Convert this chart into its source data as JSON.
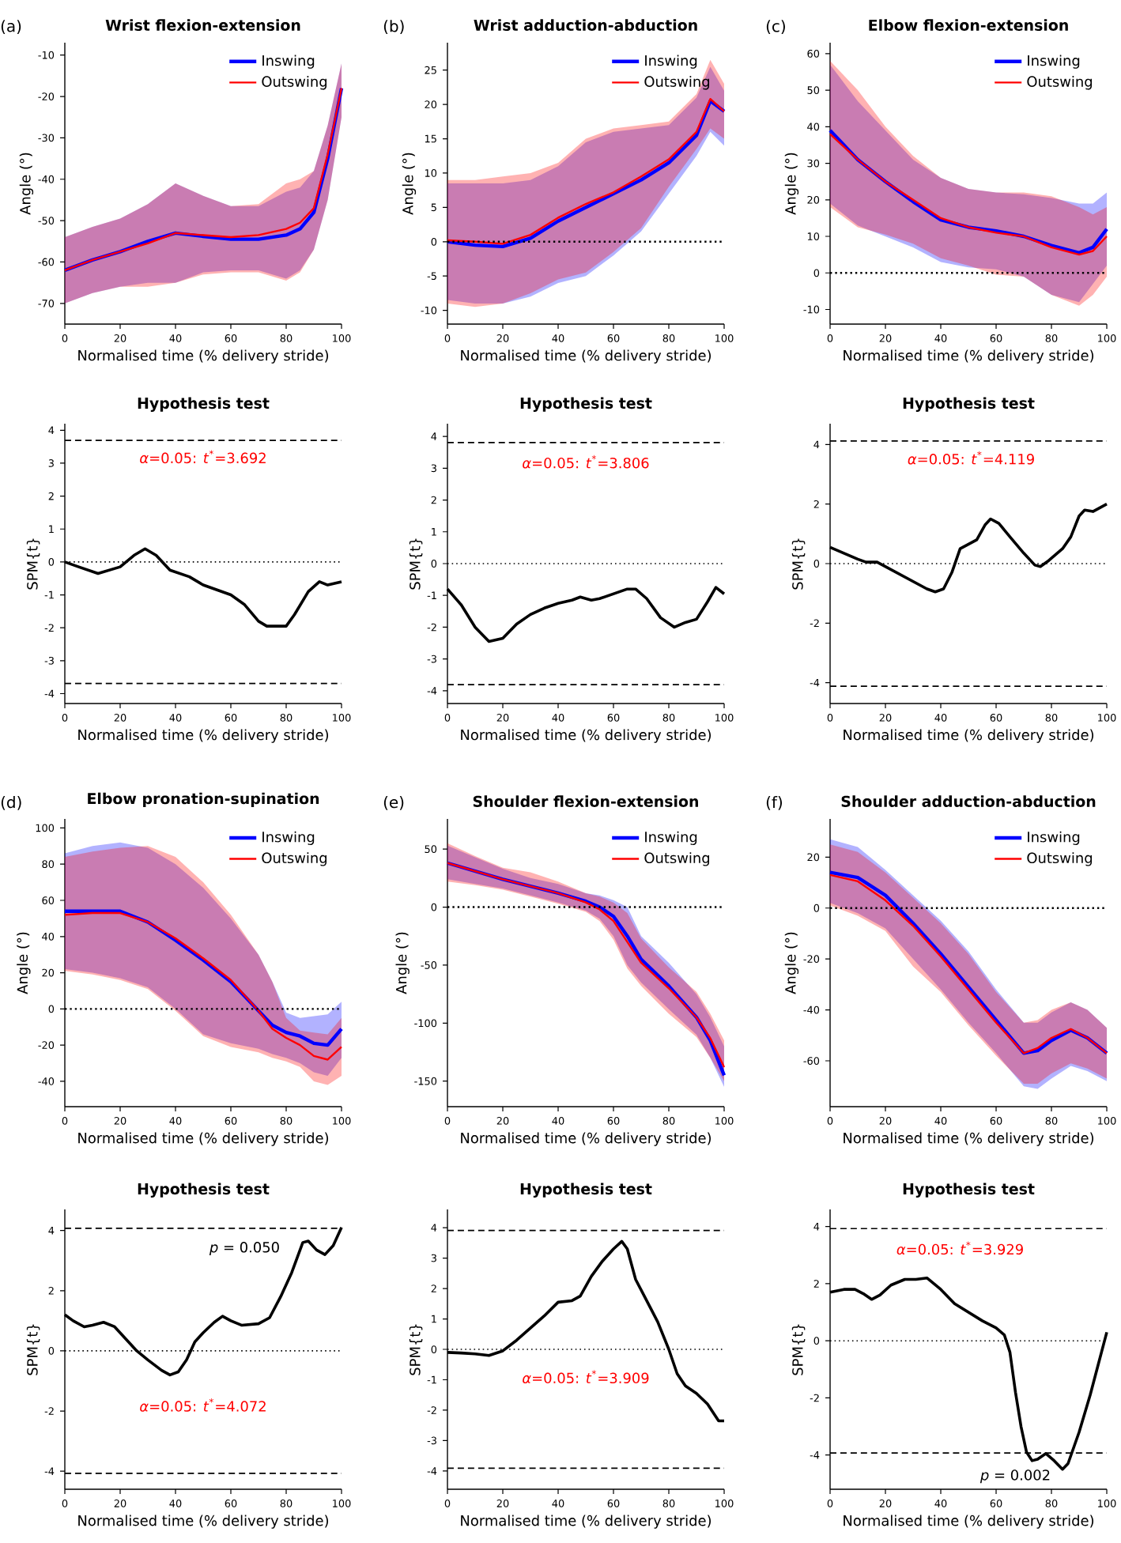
{
  "chart_data": [
    {
      "type": "line",
      "title": "Wrist flexion-extension",
      "xlabel": "Normalised time (% delivery stride)",
      "ylabel": "Angle (°)",
      "annotations": [
        "(a)"
      ],
      "legend": "top right",
      "xlim": [
        0,
        100
      ],
      "xticks": [
        0,
        20,
        40,
        60,
        80,
        100
      ],
      "ylim": [
        -75,
        -7
      ],
      "yticks": [
        -70,
        -60,
        -50,
        -40,
        -30,
        -20,
        -10
      ],
      "x": [
        0,
        10,
        20,
        30,
        40,
        50,
        60,
        70,
        80,
        85,
        90,
        95,
        100
      ],
      "series": [
        {
          "name": "Inswing",
          "color": "#0000ff",
          "values": [
            -62,
            -59.5,
            -57.5,
            -55,
            -53,
            -53.8,
            -54.5,
            -54.5,
            -53.5,
            -52,
            -48,
            -35,
            -18
          ],
          "upper": [
            -54,
            -51.5,
            -49.5,
            -46,
            -41,
            -44,
            -46.5,
            -46.5,
            -43,
            -42,
            -38,
            -27,
            -12
          ],
          "lower": [
            -70,
            -67.5,
            -66,
            -65,
            -65,
            -62.5,
            -62,
            -62,
            -64,
            -62,
            -57,
            -45,
            -25
          ]
        },
        {
          "name": "Outswing",
          "color": "#ff0000",
          "values": [
            -62,
            -59.5,
            -57.5,
            -55.5,
            -53,
            -53.5,
            -54,
            -53.5,
            -52,
            -50.5,
            -47,
            -34,
            -18
          ],
          "upper": [
            -54,
            -51.5,
            -49.5,
            -46,
            -41,
            -44,
            -46.5,
            -46,
            -41,
            -40,
            -38,
            -27,
            -12
          ],
          "lower": [
            -70,
            -67.5,
            -66,
            -66,
            -65,
            -63,
            -62.5,
            -62.5,
            -64.5,
            -62.5,
            -57,
            -45,
            -25
          ]
        }
      ]
    },
    {
      "type": "line",
      "title": "Wrist adduction-abduction",
      "xlabel": "Normalised time (% delivery stride)",
      "ylabel": "Angle (°)",
      "annotations": [
        "(b)"
      ],
      "legend": "top right",
      "xlim": [
        0,
        100
      ],
      "xticks": [
        0,
        20,
        40,
        60,
        80,
        100
      ],
      "ylim": [
        -12,
        29
      ],
      "yticks": [
        -10,
        -5,
        0,
        5,
        10,
        15,
        20,
        25
      ],
      "ref_lines": [
        {
          "axis": "y",
          "value": 0,
          "line_style": "dotted"
        }
      ],
      "x": [
        0,
        10,
        20,
        30,
        40,
        50,
        60,
        70,
        80,
        90,
        95,
        100
      ],
      "series": [
        {
          "name": "Inswing",
          "color": "#0000ff",
          "values": [
            0,
            -0.5,
            -0.7,
            0.5,
            3,
            5,
            7,
            9,
            11.5,
            15.5,
            20.5,
            19
          ],
          "upper": [
            8.5,
            8.5,
            8.5,
            9,
            11,
            14.5,
            16,
            16.5,
            17,
            21,
            25.5,
            22
          ],
          "lower": [
            -8.5,
            -9,
            -9,
            -8,
            -6,
            -5,
            -2,
            1.5,
            7,
            12.5,
            16,
            14
          ]
        },
        {
          "name": "Outswing",
          "color": "#ff0000",
          "values": [
            0.2,
            0,
            -0.3,
            1,
            3.5,
            5.5,
            7.2,
            9.5,
            12,
            16,
            20.8,
            19
          ],
          "upper": [
            9,
            9,
            9.5,
            10,
            11.5,
            15,
            16.5,
            17,
            17.5,
            21.5,
            26.5,
            23
          ],
          "lower": [
            -9,
            -9.5,
            -9,
            -7.5,
            -5.5,
            -4.5,
            -1.5,
            2,
            8,
            13.5,
            16.5,
            15
          ]
        }
      ]
    },
    {
      "type": "line",
      "title": "Elbow flexion-extension",
      "xlabel": "Normalised time (% delivery stride)",
      "ylabel": "Angle (°)",
      "annotations": [
        "(c)"
      ],
      "legend": "top right",
      "xlim": [
        0,
        100
      ],
      "xticks": [
        0,
        20,
        40,
        60,
        80,
        100
      ],
      "ylim": [
        -14,
        63
      ],
      "yticks": [
        -10,
        0,
        10,
        20,
        30,
        40,
        50,
        60
      ],
      "ref_lines": [
        {
          "axis": "y",
          "value": 0,
          "line_style": "dotted"
        }
      ],
      "x": [
        0,
        10,
        20,
        30,
        40,
        50,
        60,
        70,
        80,
        90,
        95,
        100
      ],
      "series": [
        {
          "name": "Inswing",
          "color": "#0000ff",
          "values": [
            39,
            31,
            25,
            19.5,
            14.5,
            12.5,
            11.5,
            10,
            7.5,
            5.5,
            7,
            12
          ],
          "upper": [
            57,
            47,
            39,
            31,
            26,
            23,
            22,
            21.5,
            20.5,
            19,
            19,
            22
          ],
          "lower": [
            19,
            13,
            10,
            7,
            3,
            1.5,
            1,
            -1,
            -6,
            -8,
            -3,
            2
          ]
        },
        {
          "name": "Outswing",
          "color": "#ff0000",
          "values": [
            38,
            31,
            25,
            20,
            15,
            12.5,
            11,
            10,
            7,
            5,
            6,
            10
          ],
          "upper": [
            58,
            50,
            40,
            32,
            26,
            23,
            22,
            22,
            21,
            18,
            16,
            18
          ],
          "lower": [
            18,
            12.5,
            10.5,
            8,
            4,
            2,
            -0.5,
            -1,
            -6,
            -9,
            -6,
            -1
          ]
        }
      ]
    },
    {
      "type": "line",
      "title": "Hypothesis test",
      "xlabel": "Normalised time (% delivery stride)",
      "ylabel": "SPM{t}",
      "xlim": [
        0,
        100
      ],
      "xticks": [
        0,
        20,
        40,
        60,
        80,
        100
      ],
      "ylim": [
        -4.3,
        4.2
      ],
      "yticks": [
        -4,
        -3,
        -2,
        -1,
        0,
        1,
        2,
        3,
        4
      ],
      "annotations": [
        "*α*=0.05:  *t*$^{*}$=3.692"
      ],
      "ref_lines": [
        {
          "axis": "y",
          "value": 3.692,
          "line_style": "dashed"
        },
        {
          "axis": "y",
          "value": -3.692,
          "line_style": "dashed"
        },
        {
          "axis": "y",
          "value": 0,
          "line_style": "dotted"
        }
      ],
      "series": [
        {
          "color": "#000000",
          "x": [
            0,
            5,
            12,
            20,
            25,
            29,
            33,
            38,
            45,
            50,
            55,
            60,
            65,
            70,
            73,
            80,
            83,
            88,
            92,
            95,
            100
          ],
          "values": [
            0,
            -0.15,
            -0.35,
            -0.15,
            0.2,
            0.4,
            0.2,
            -0.25,
            -0.45,
            -0.7,
            -0.85,
            -1.0,
            -1.3,
            -1.8,
            -1.95,
            -1.95,
            -1.6,
            -0.9,
            -0.6,
            -0.7,
            -0.6
          ]
        }
      ]
    },
    {
      "type": "line",
      "title": "Hypothesis test",
      "xlabel": "Normalised time (% delivery stride)",
      "ylabel": "SPM{t}",
      "xlim": [
        0,
        100
      ],
      "xticks": [
        0,
        20,
        40,
        60,
        80,
        100
      ],
      "ylim": [
        -4.4,
        4.4
      ],
      "yticks": [
        -4,
        -3,
        -2,
        -1,
        0,
        1,
        2,
        3,
        4
      ],
      "annotations": [
        "*α*=0.05:  *t*$^{*}$=3.806"
      ],
      "ref_lines": [
        {
          "axis": "y",
          "value": 3.806,
          "line_style": "dashed"
        },
        {
          "axis": "y",
          "value": -3.806,
          "line_style": "dashed"
        },
        {
          "axis": "y",
          "value": 0,
          "line_style": "dotted"
        }
      ],
      "series": [
        {
          "color": "#000000",
          "x": [
            0,
            5,
            10,
            15,
            20,
            25,
            30,
            35,
            40,
            45,
            48,
            52,
            55,
            60,
            65,
            68,
            72,
            77,
            82,
            86,
            90,
            94,
            97,
            100
          ],
          "values": [
            -0.8,
            -1.3,
            -2.0,
            -2.45,
            -2.35,
            -1.9,
            -1.6,
            -1.4,
            -1.25,
            -1.15,
            -1.05,
            -1.15,
            -1.1,
            -0.95,
            -0.8,
            -0.8,
            -1.1,
            -1.7,
            -2.0,
            -1.85,
            -1.75,
            -1.2,
            -0.75,
            -0.95
          ]
        }
      ]
    },
    {
      "type": "line",
      "title": "Hypothesis test",
      "xlabel": "Normalised time (% delivery stride)",
      "ylabel": "SPM{t}",
      "xlim": [
        0,
        100
      ],
      "xticks": [
        0,
        20,
        40,
        60,
        80,
        100
      ],
      "ylim": [
        -4.7,
        4.7
      ],
      "yticks": [
        -4,
        -2,
        0,
        2,
        4
      ],
      "annotations": [
        "*α*=0.05:  *t*$^{*}$=4.119"
      ],
      "ref_lines": [
        {
          "axis": "y",
          "value": 4.119,
          "line_style": "dashed"
        },
        {
          "axis": "y",
          "value": -4.119,
          "line_style": "dashed"
        },
        {
          "axis": "y",
          "value": 0,
          "line_style": "dotted"
        }
      ],
      "series": [
        {
          "color": "#000000",
          "x": [
            0,
            5,
            10,
            13,
            17,
            20,
            25,
            30,
            35,
            38,
            41,
            44,
            47,
            50,
            53,
            56,
            58,
            61,
            65,
            70,
            74,
            76,
            79,
            84,
            87,
            90,
            92,
            95,
            100
          ],
          "values": [
            0.55,
            0.35,
            0.15,
            0.05,
            0.05,
            -0.1,
            -0.35,
            -0.6,
            -0.85,
            -0.95,
            -0.85,
            -0.3,
            0.5,
            0.65,
            0.8,
            1.3,
            1.5,
            1.35,
            0.9,
            0.35,
            -0.05,
            -0.1,
            0.1,
            0.5,
            0.9,
            1.6,
            1.8,
            1.75,
            2.0
          ]
        }
      ]
    },
    {
      "type": "line",
      "title": "Elbow pronation-supination",
      "xlabel": "Normalised time (% delivery stride)",
      "ylabel": "Angle (°)",
      "annotations": [
        "(d)"
      ],
      "legend": "top right",
      "xlim": [
        0,
        100
      ],
      "xticks": [
        0,
        20,
        40,
        60,
        80,
        100
      ],
      "ylim": [
        -54,
        105
      ],
      "yticks": [
        -40,
        -20,
        0,
        20,
        40,
        60,
        80,
        100
      ],
      "ref_lines": [
        {
          "axis": "y",
          "value": 0,
          "line_style": "dotted"
        }
      ],
      "x": [
        0,
        10,
        20,
        30,
        40,
        50,
        60,
        70,
        75,
        80,
        85,
        90,
        95,
        100
      ],
      "series": [
        {
          "name": "Inswing",
          "color": "#0000ff",
          "values": [
            54,
            54,
            54,
            48,
            38,
            27,
            15,
            -1,
            -9,
            -13,
            -15,
            -19,
            -20,
            -11
          ],
          "upper": [
            86,
            90,
            92,
            89,
            80,
            67,
            50,
            30,
            15,
            -2,
            -5,
            -4,
            -3,
            4
          ],
          "lower": [
            22,
            20,
            17,
            12,
            0,
            -14,
            -19,
            -22,
            -25,
            -27,
            -30,
            -35,
            -37,
            -27
          ]
        },
        {
          "name": "Outswing",
          "color": "#ff0000",
          "values": [
            52,
            53,
            53,
            48,
            39,
            28,
            16,
            -1,
            -11,
            -16,
            -20,
            -26,
            -28,
            -21
          ],
          "upper": [
            84,
            87,
            89,
            90,
            84,
            70,
            52,
            30,
            15,
            -5,
            -12,
            -13,
            -14,
            -5
          ],
          "lower": [
            21,
            19,
            16,
            11,
            -1,
            -15,
            -21,
            -24,
            -27,
            -29,
            -32,
            -40,
            -42,
            -37
          ]
        }
      ]
    },
    {
      "type": "line",
      "title": "Shoulder flexion-extension",
      "xlabel": "Normalised time (% delivery stride)",
      "ylabel": "Angle (°)",
      "annotations": [
        "(e)"
      ],
      "legend": "top right",
      "xlim": [
        0,
        100
      ],
      "xticks": [
        0,
        20,
        40,
        60,
        80,
        100
      ],
      "ylim": [
        -172,
        76
      ],
      "yticks": [
        -150,
        -100,
        -50,
        0,
        50
      ],
      "ref_lines": [
        {
          "axis": "y",
          "value": 0,
          "line_style": "dotted"
        }
      ],
      "x": [
        0,
        10,
        20,
        30,
        40,
        50,
        55,
        60,
        65,
        70,
        80,
        90,
        95,
        100
      ],
      "series": [
        {
          "name": "Inswing",
          "color": "#0000ff",
          "values": [
            38,
            31,
            24,
            18,
            12,
            5,
            0,
            -8,
            -25,
            -45,
            -68,
            -95,
            -115,
            -145
          ],
          "upper": [
            53,
            43,
            33,
            25,
            20,
            12,
            10,
            6,
            0,
            -25,
            -48,
            -75,
            -95,
            -120
          ],
          "lower": [
            24,
            20,
            16,
            10,
            4,
            -3,
            -10,
            -25,
            -50,
            -65,
            -88,
            -110,
            -130,
            -155
          ]
        },
        {
          "name": "Outswing",
          "color": "#ff0000",
          "values": [
            38,
            31,
            24,
            18,
            12,
            4,
            -2,
            -12,
            -30,
            -48,
            -70,
            -95,
            -113,
            -138
          ],
          "upper": [
            55,
            44,
            34,
            30,
            22,
            12,
            9,
            4,
            -5,
            -27,
            -52,
            -73,
            -92,
            -115
          ],
          "lower": [
            22,
            19,
            15,
            9,
            3,
            -4,
            -12,
            -28,
            -53,
            -68,
            -92,
            -112,
            -130,
            -150
          ]
        }
      ]
    },
    {
      "type": "line",
      "title": "Shoulder adduction-abduction",
      "xlabel": "Normalised time (% delivery stride)",
      "ylabel": "Angle (°)",
      "annotations": [
        "(f)"
      ],
      "legend": "top right",
      "xlim": [
        0,
        100
      ],
      "xticks": [
        0,
        20,
        40,
        60,
        80,
        100
      ],
      "ylim": [
        -78,
        35
      ],
      "yticks": [
        -60,
        -40,
        -20,
        0,
        20
      ],
      "ref_lines": [
        {
          "axis": "y",
          "value": 0,
          "line_style": "dotted"
        }
      ],
      "x": [
        0,
        10,
        20,
        30,
        40,
        50,
        60,
        70,
        75,
        80,
        87,
        93,
        100
      ],
      "series": [
        {
          "name": "Inswing",
          "color": "#0000ff",
          "values": [
            14,
            12,
            5,
            -6,
            -18,
            -31,
            -44,
            -57,
            -56,
            -52,
            -48,
            -51,
            -57
          ],
          "upper": [
            27,
            24,
            15,
            5,
            -5,
            -17,
            -32,
            -45,
            -45,
            -41,
            -37,
            -40,
            -47
          ],
          "lower": [
            2,
            -2,
            -8,
            -20,
            -32,
            -45,
            -57,
            -70,
            -71,
            -67,
            -62,
            -64,
            -68
          ]
        },
        {
          "name": "Outswing",
          "color": "#ff0000",
          "values": [
            13,
            10.5,
            3,
            -7,
            -19,
            -32,
            -45,
            -57,
            -55,
            -51,
            -47.5,
            -51,
            -57
          ],
          "upper": [
            25,
            22,
            14,
            4,
            -6,
            -18,
            -33,
            -45,
            -44,
            -40,
            -37,
            -40,
            -47
          ],
          "lower": [
            1,
            -3,
            -9,
            -23,
            -33,
            -46,
            -58,
            -69,
            -69,
            -65,
            -61,
            -63,
            -67
          ]
        }
      ]
    },
    {
      "type": "line",
      "title": "Hypothesis test",
      "xlabel": "Normalised time (% delivery stride)",
      "ylabel": "SPM{t}",
      "xlim": [
        0,
        100
      ],
      "xticks": [
        0,
        20,
        40,
        60,
        80,
        100
      ],
      "ylim": [
        -4.6,
        4.7
      ],
      "yticks": [
        -4,
        -2,
        0,
        2,
        4
      ],
      "annotations": [
        "*p* = 0.050",
        "*α*=0.05:  *t*$^{*}$=4.072"
      ],
      "ref_lines": [
        {
          "axis": "y",
          "value": 4.072,
          "line_style": "dashed"
        },
        {
          "axis": "y",
          "value": -4.072,
          "line_style": "dashed"
        },
        {
          "axis": "y",
          "value": 0,
          "line_style": "dotted"
        }
      ],
      "series": [
        {
          "color": "#000000",
          "x": [
            0,
            3,
            7,
            10,
            14,
            18,
            22,
            26,
            30,
            35,
            38,
            41,
            44,
            47,
            50,
            54,
            57,
            60,
            64,
            70,
            74,
            78,
            82,
            86,
            88,
            91,
            94,
            97,
            100
          ],
          "values": [
            1.2,
            1.0,
            0.8,
            0.85,
            0.95,
            0.8,
            0.4,
            0.0,
            -0.3,
            -0.65,
            -0.8,
            -0.7,
            -0.3,
            0.3,
            0.6,
            0.95,
            1.15,
            1.0,
            0.85,
            0.9,
            1.1,
            1.8,
            2.6,
            3.6,
            3.65,
            3.35,
            3.2,
            3.5,
            4.1
          ]
        }
      ]
    },
    {
      "type": "line",
      "title": "Hypothesis test",
      "xlabel": "Normalised time (% delivery stride)",
      "ylabel": "SPM{t}",
      "xlim": [
        0,
        100
      ],
      "xticks": [
        0,
        20,
        40,
        60,
        80,
        100
      ],
      "ylim": [
        -4.6,
        4.6
      ],
      "yticks": [
        -4,
        -3,
        -2,
        -1,
        0,
        1,
        2,
        3,
        4
      ],
      "annotations": [
        "*α*=0.05:  *t*$^{*}$=3.909"
      ],
      "ref_lines": [
        {
          "axis": "y",
          "value": 3.909,
          "line_style": "dashed"
        },
        {
          "axis": "y",
          "value": -3.909,
          "line_style": "dashed"
        },
        {
          "axis": "y",
          "value": 0,
          "line_style": "dotted"
        }
      ],
      "series": [
        {
          "color": "#000000",
          "x": [
            0,
            5,
            10,
            15,
            20,
            25,
            30,
            35,
            40,
            45,
            48,
            52,
            56,
            60,
            63,
            65,
            68,
            72,
            76,
            80,
            83,
            86,
            90,
            94,
            98,
            100
          ],
          "values": [
            -0.1,
            -0.12,
            -0.15,
            -0.2,
            -0.05,
            0.3,
            0.7,
            1.1,
            1.55,
            1.6,
            1.75,
            2.4,
            2.9,
            3.3,
            3.55,
            3.3,
            2.3,
            1.6,
            0.9,
            0.0,
            -0.8,
            -1.2,
            -1.45,
            -1.8,
            -2.35,
            -2.35
          ]
        }
      ]
    },
    {
      "type": "line",
      "title": "Hypothesis test",
      "xlabel": "Normalised time (% delivery stride)",
      "ylabel": "SPM{t}",
      "xlim": [
        0,
        100
      ],
      "xticks": [
        0,
        20,
        40,
        60,
        80,
        100
      ],
      "ylim": [
        -5.2,
        4.6
      ],
      "yticks": [
        -4,
        -2,
        0,
        2,
        4
      ],
      "annotations": [
        "*α*=0.05:  *t*$^{*}$=3.929",
        "*p* = 0.002"
      ],
      "ref_lines": [
        {
          "axis": "y",
          "value": 3.929,
          "line_style": "dashed"
        },
        {
          "axis": "y",
          "value": -3.929,
          "line_style": "dashed"
        },
        {
          "axis": "y",
          "value": 0,
          "line_style": "dotted"
        }
      ],
      "series": [
        {
          "color": "#000000",
          "x": [
            0,
            5,
            9,
            12,
            15,
            18,
            22,
            27,
            31,
            35,
            40,
            45,
            50,
            55,
            60,
            63,
            65,
            67,
            69,
            71,
            73,
            75,
            78,
            81,
            84,
            86,
            90,
            94,
            97,
            100
          ],
          "values": [
            1.7,
            1.8,
            1.8,
            1.65,
            1.45,
            1.6,
            1.95,
            2.15,
            2.15,
            2.2,
            1.8,
            1.3,
            1.0,
            0.7,
            0.45,
            0.2,
            -0.4,
            -1.8,
            -3.0,
            -3.9,
            -4.2,
            -4.15,
            -3.95,
            -4.2,
            -4.5,
            -4.3,
            -3.2,
            -1.9,
            -0.8,
            0.3
          ]
        }
      ]
    }
  ]
}
